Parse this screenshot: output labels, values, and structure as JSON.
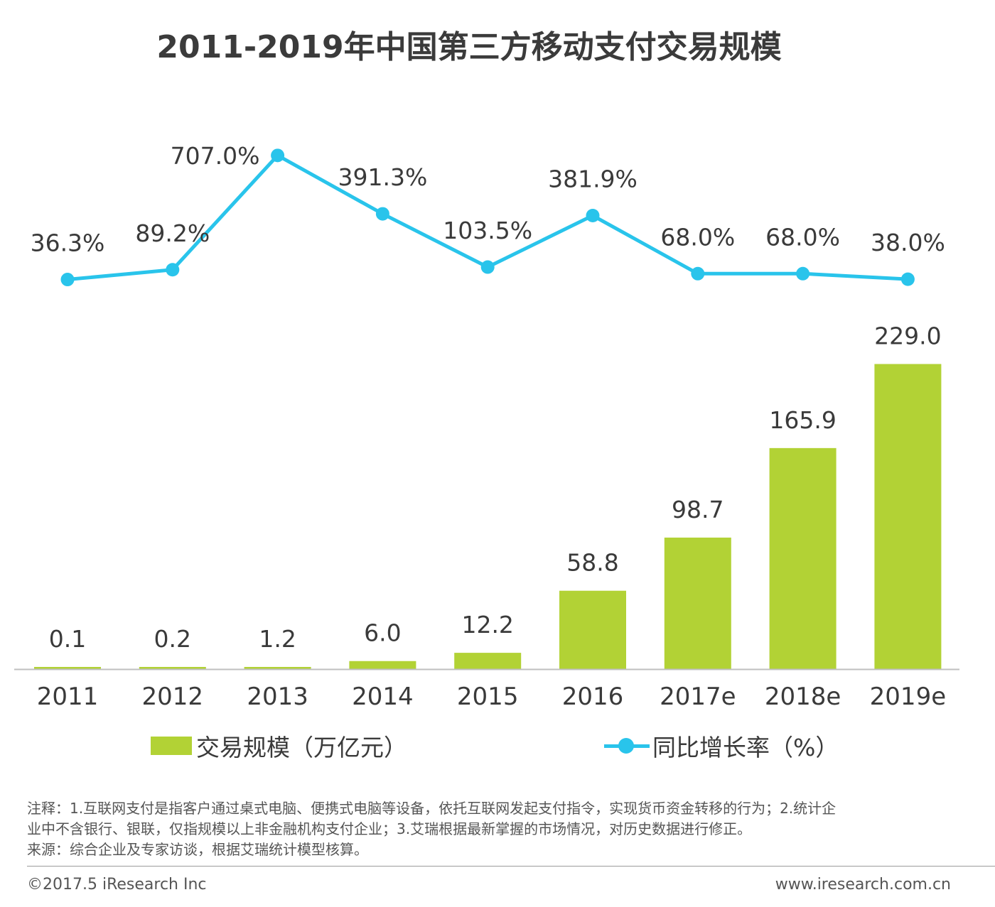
{
  "title": "2011-2019年中国第三方移动支付交易规模",
  "colors": {
    "bar": "#b2d235",
    "line": "#29c4eb",
    "axis": "#bfbfbf",
    "label": "#3a3a3a"
  },
  "chart_data": {
    "type": "bar+line",
    "title": "2011-2019年中国第三方移动支付交易规模",
    "categories": [
      "2011",
      "2012",
      "2013",
      "2014",
      "2015",
      "2016",
      "2017e",
      "2018e",
      "2019e"
    ],
    "series": [
      {
        "name": "交易规模（万亿元）",
        "type": "bar",
        "values": [
          0.1,
          0.2,
          1.2,
          6.0,
          12.2,
          58.8,
          98.7,
          165.9,
          229.0
        ],
        "labels": [
          "0.1",
          "0.2",
          "1.2",
          "6.0",
          "12.2",
          "58.8",
          "98.7",
          "165.9",
          "229.0"
        ]
      },
      {
        "name": "同比增长率（%）",
        "type": "line",
        "values": [
          36.3,
          89.2,
          707.0,
          391.3,
          103.5,
          381.9,
          68.0,
          68.0,
          38.0
        ],
        "labels": [
          "36.3%",
          "89.2%",
          "707.0%",
          "391.3%",
          "103.5%",
          "381.9%",
          "68.0%",
          "68.0%",
          "38.0%"
        ]
      }
    ],
    "legend_position": "bottom",
    "grid": false
  },
  "legend": {
    "bar_label": "交易规模（万亿元）",
    "line_label": "同比增长率（%）"
  },
  "notes": {
    "note_line1": "注释：1.互联网支付是指客户通过桌式电脑、便携式电脑等设备，依托互联网发起支付指令，实现货币资金转移的行为；2.统计企",
    "note_line2": "业中不含银行、银联，仅指规模以上非金融机构支付企业；3.艾瑞根据最新掌握的市场情况，对历史数据进行修正。",
    "source": "来源：综合企业及专家访谈，根据艾瑞统计模型核算。"
  },
  "footer": {
    "copyright": "©2017.5 iResearch Inc",
    "website": "www.iresearch.com.cn"
  }
}
